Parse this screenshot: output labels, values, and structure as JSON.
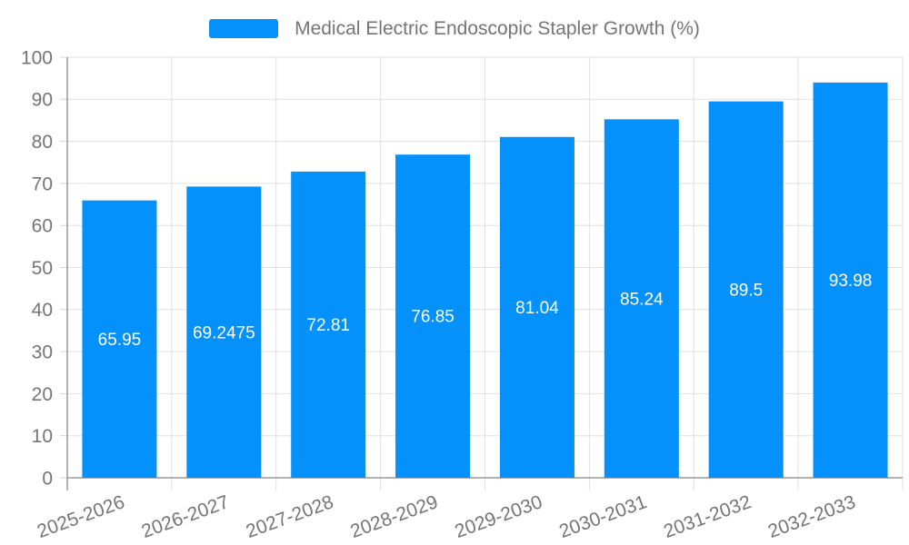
{
  "chart_data": {
    "type": "bar",
    "title": "",
    "legend_position": "top-center",
    "categories": [
      "2025-2026",
      "2026-2027",
      "2027-2028",
      "2028-2029",
      "2029-2030",
      "2030-2031",
      "2031-2032",
      "2032-2033"
    ],
    "series": [
      {
        "name": "Medical Electric Endoscopic Stapler Growth (%)",
        "values": [
          65.95,
          69.2475,
          72.81,
          76.85,
          81.04,
          85.24,
          89.5,
          93.98
        ]
      }
    ],
    "xlabel": "",
    "ylabel": "",
    "ylim": [
      0,
      100
    ],
    "ytick_step": 10,
    "ytick_labels": [
      "0",
      "10",
      "20",
      "30",
      "40",
      "50",
      "60",
      "70",
      "80",
      "90",
      "100"
    ],
    "grid": true,
    "x_label_rotation_deg": -20,
    "colors": {
      "bar": "#0591fb",
      "bar_value_label": "#ffffff",
      "axis_label": "#757575",
      "legend_text": "#757575",
      "grid_line": "#e0e0e0",
      "tick_line": "#d4d4d4",
      "axis_line": "#999999",
      "background": "#ffffff"
    }
  }
}
